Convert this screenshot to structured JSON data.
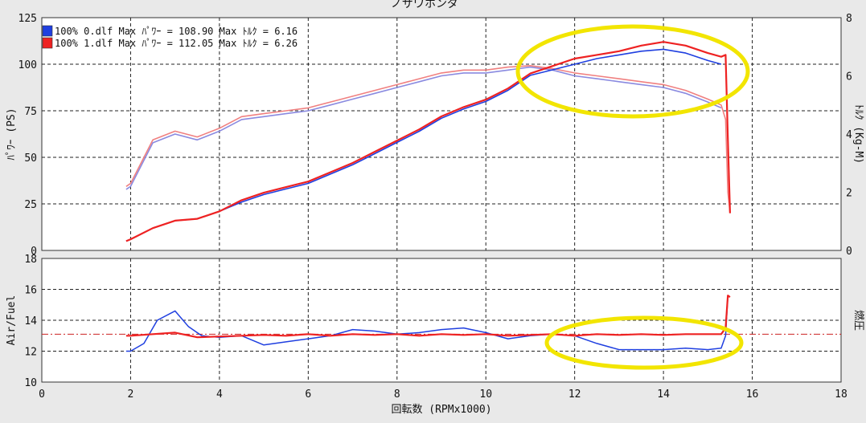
{
  "chart_data": [
    {
      "type": "line",
      "title": "ノザワホンダ",
      "xlabel": "回転数 (RPMx1000)",
      "ylabel": "ﾊﾟﾜｰ (PS)",
      "y2label": "ﾄﾙｸ (Kg-M)",
      "xlim": [
        0,
        18
      ],
      "ylim": [
        0,
        125
      ],
      "y2lim": [
        0,
        8
      ],
      "xticks": [
        "0",
        "2",
        "4",
        "6",
        "8",
        "10",
        "12",
        "14",
        "16",
        "18"
      ],
      "yticks": [
        "0",
        "25",
        "50",
        "75",
        "100",
        "125"
      ],
      "y2ticks": [
        "0",
        "2",
        "4",
        "6",
        "8"
      ],
      "grid": true,
      "legend": [
        {
          "text": "100% 0.dlf Max ﾊﾟﾜｰ = 108.90  Max ﾄﾙｸ = 6.16",
          "color": "#1f3fe0"
        },
        {
          "text": "100% 1.dlf Max ﾊﾟﾜｰ = 112.05  Max ﾄﾙｸ = 6.26",
          "color": "#ee2222"
        }
      ],
      "power_series": [
        {
          "color": "#1f3fe0",
          "x": [
            1.9,
            2.0,
            2.5,
            3.0,
            3.5,
            4.0,
            4.5,
            5.0,
            5.5,
            6.0,
            6.5,
            7.0,
            7.5,
            8.0,
            8.5,
            9.0,
            9.5,
            10.0,
            10.5,
            11.0,
            11.5,
            12.0,
            12.5,
            13.0,
            13.5,
            14.0,
            14.5,
            15.0,
            15.3
          ],
          "y": [
            5,
            6,
            12,
            16,
            17,
            21,
            26,
            30,
            33,
            36,
            41,
            46,
            52,
            58,
            64,
            71,
            76,
            80,
            86,
            94,
            97,
            100,
            103,
            105,
            107,
            108,
            106,
            102,
            100
          ]
        },
        {
          "color": "#ee2222",
          "x": [
            1.9,
            2.0,
            2.5,
            3.0,
            3.5,
            4.0,
            4.5,
            5.0,
            5.5,
            6.0,
            6.5,
            7.0,
            7.5,
            8.0,
            8.5,
            9.0,
            9.5,
            10.0,
            10.5,
            11.0,
            11.5,
            12.0,
            12.5,
            13.0,
            13.5,
            14.0,
            14.5,
            15.0,
            15.3,
            15.4,
            15.45,
            15.5
          ],
          "y": [
            5,
            6,
            12,
            16,
            17,
            21,
            27,
            31,
            34,
            37,
            42,
            47,
            53,
            59,
            65,
            72,
            77,
            81,
            87,
            95,
            99,
            103,
            105,
            107,
            110,
            112,
            110,
            106,
            104,
            105,
            60,
            20
          ]
        }
      ],
      "torque_series": [
        {
          "color": "#8a8ae0",
          "x": [
            1.9,
            2.0,
            2.5,
            3.0,
            3.5,
            4.0,
            4.5,
            5.0,
            5.5,
            6.0,
            6.5,
            7.0,
            7.5,
            8.0,
            8.5,
            9.0,
            9.5,
            10.0,
            10.5,
            11.0,
            11.5,
            12.0,
            12.5,
            13.0,
            13.5,
            14.0,
            14.5,
            15.0,
            15.3
          ],
          "y": [
            2.1,
            2.2,
            3.7,
            4.0,
            3.8,
            4.1,
            4.5,
            4.6,
            4.7,
            4.8,
            5.0,
            5.2,
            5.4,
            5.6,
            5.8,
            6.0,
            6.1,
            6.1,
            6.2,
            6.3,
            6.2,
            6.0,
            5.9,
            5.8,
            5.7,
            5.6,
            5.4,
            5.1,
            4.9
          ]
        },
        {
          "color": "#f08080",
          "x": [
            1.9,
            2.0,
            2.5,
            3.0,
            3.5,
            4.0,
            4.5,
            5.0,
            5.5,
            6.0,
            6.5,
            7.0,
            7.5,
            8.0,
            8.5,
            9.0,
            9.5,
            10.0,
            10.5,
            11.0,
            11.5,
            12.0,
            12.5,
            13.0,
            13.5,
            14.0,
            14.5,
            15.0,
            15.3,
            15.4,
            15.45,
            15.5
          ],
          "y": [
            2.2,
            2.3,
            3.8,
            4.1,
            3.9,
            4.2,
            4.6,
            4.7,
            4.8,
            4.9,
            5.1,
            5.3,
            5.5,
            5.7,
            5.9,
            6.1,
            6.2,
            6.2,
            6.3,
            6.35,
            6.25,
            6.1,
            6.0,
            5.9,
            5.8,
            5.7,
            5.5,
            5.2,
            5.0,
            4.5,
            2.0,
            1.3
          ]
        }
      ]
    },
    {
      "type": "line",
      "ylabel": "Air/Fuel",
      "y2label": "燃圧",
      "xlim": [
        0,
        18
      ],
      "ylim": [
        10,
        18
      ],
      "yticks": [
        "10",
        "12",
        "14",
        "16",
        "18"
      ],
      "xticks": [
        "0",
        "2",
        "4",
        "6",
        "8",
        "10",
        "12",
        "14",
        "16",
        "18"
      ],
      "reference_line": 13.1,
      "reference_color": "#cc2222",
      "grid": true,
      "series": [
        {
          "color": "#1f3fe0",
          "x": [
            1.9,
            2.0,
            2.3,
            2.6,
            3.0,
            3.3,
            3.6,
            4.0,
            4.5,
            5.0,
            5.5,
            6.0,
            6.5,
            7.0,
            7.5,
            8.0,
            8.5,
            9.0,
            9.5,
            10.0,
            10.5,
            11.0,
            11.5,
            12.0,
            12.5,
            13.0,
            13.5,
            14.0,
            14.5,
            15.0,
            15.3,
            15.4,
            15.45
          ],
          "y": [
            12.0,
            12.0,
            12.5,
            14.0,
            14.6,
            13.6,
            13.0,
            12.9,
            13.0,
            12.4,
            12.6,
            12.8,
            13.0,
            13.4,
            13.3,
            13.1,
            13.2,
            13.4,
            13.5,
            13.2,
            12.8,
            13.0,
            13.1,
            13.0,
            12.5,
            12.1,
            12.1,
            12.1,
            12.2,
            12.1,
            12.2,
            13.0,
            15.6
          ]
        },
        {
          "color": "#ee2222",
          "x": [
            1.9,
            2.0,
            2.5,
            3.0,
            3.5,
            4.0,
            4.5,
            5.0,
            5.5,
            6.0,
            6.5,
            7.0,
            7.5,
            8.0,
            8.5,
            9.0,
            9.5,
            10.0,
            10.5,
            11.0,
            11.5,
            12.0,
            12.5,
            13.0,
            13.5,
            14.0,
            14.5,
            15.0,
            15.3,
            15.4,
            15.45,
            15.5
          ],
          "y": [
            13.0,
            13.0,
            13.1,
            13.2,
            12.9,
            12.95,
            13.0,
            13.05,
            13.0,
            13.1,
            13.0,
            13.1,
            13.05,
            13.1,
            13.0,
            13.1,
            13.05,
            13.1,
            13.0,
            13.05,
            13.1,
            13.0,
            13.1,
            13.05,
            13.1,
            13.05,
            13.1,
            13.1,
            13.1,
            13.5,
            15.6,
            15.5
          ]
        }
      ]
    }
  ],
  "annotation_color": "#f2e500"
}
